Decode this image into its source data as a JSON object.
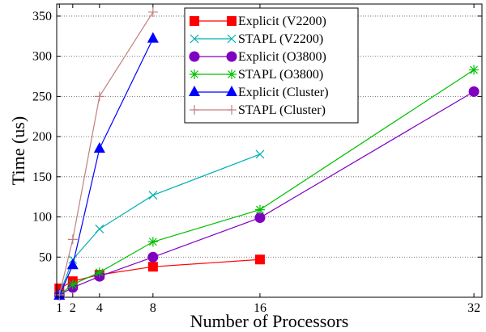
{
  "chart_data": {
    "type": "line",
    "title": "",
    "xlabel": "Number of Processors",
    "ylabel": "Time (us)",
    "xlim": [
      0.8,
      32.6
    ],
    "ylim": [
      0,
      365
    ],
    "xticks": [
      1,
      2,
      4,
      8,
      16,
      32
    ],
    "yticks": [
      50,
      100,
      150,
      200,
      250,
      300,
      350
    ],
    "grid": "horizontal dotted",
    "legend_position": "top-center",
    "series": [
      {
        "name": "Explicit (V2200)",
        "color": "#ff0000",
        "marker": "square",
        "x": [
          1,
          2,
          4,
          8,
          16
        ],
        "y": [
          11,
          20,
          28,
          38,
          47
        ]
      },
      {
        "name": "STAPL (V2200)",
        "color": "#00b0b0",
        "marker": "x",
        "x": [
          1,
          2,
          4,
          8,
          16
        ],
        "y": [
          3,
          47,
          85,
          127,
          178
        ]
      },
      {
        "name": "Explicit (O3800)",
        "color": "#8000c0",
        "marker": "circle",
        "x": [
          1,
          2,
          4,
          8,
          16,
          32
        ],
        "y": [
          3,
          12,
          26,
          50,
          99,
          256
        ]
      },
      {
        "name": "STAPL (O3800)",
        "color": "#00c000",
        "marker": "star",
        "x": [
          1,
          2,
          4,
          8,
          16,
          32
        ],
        "y": [
          3,
          16,
          31,
          69,
          109,
          283
        ]
      },
      {
        "name": "Explicit (Cluster)",
        "color": "#0000ff",
        "marker": "triangle",
        "x": [
          1,
          2,
          4,
          8
        ],
        "y": [
          2,
          40,
          185,
          322
        ]
      },
      {
        "name": "STAPL (Cluster)",
        "color": "#c08080",
        "marker": "plus",
        "x": [
          1,
          2,
          4,
          8
        ],
        "y": [
          3,
          72,
          250,
          355
        ]
      }
    ]
  }
}
